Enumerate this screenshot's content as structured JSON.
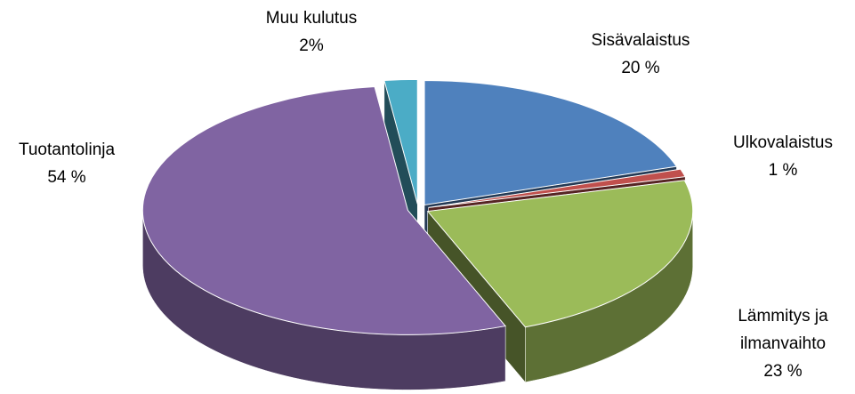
{
  "chart_data": {
    "type": "pie",
    "categories": [
      "Sisävalaistus",
      "Ulkovalaistus",
      "Lämmitys ja ilmanvaihto",
      "Tuotantolinja",
      "Muu kulutus"
    ],
    "values": [
      20,
      1,
      23,
      54,
      2
    ],
    "value_labels": [
      "20 %",
      "1 %",
      "23 %",
      "54 %",
      "2%"
    ],
    "colors": [
      "#4f81bd",
      "#c0504d",
      "#9bbb59",
      "#8064a2",
      "#4bacc6"
    ]
  }
}
